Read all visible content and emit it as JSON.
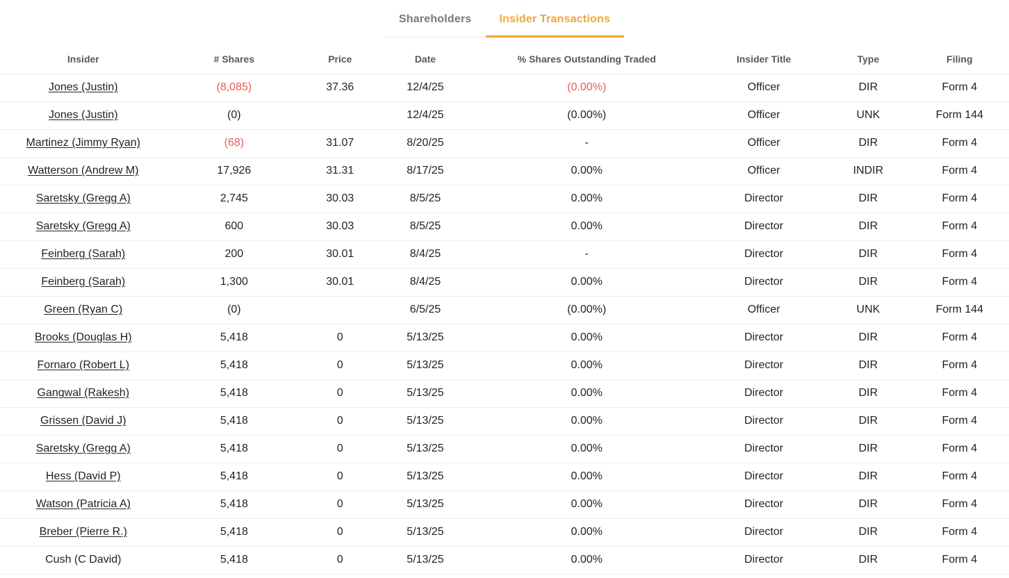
{
  "tabs": [
    {
      "label": "Shareholders",
      "active": false
    },
    {
      "label": "Insider Transactions",
      "active": true
    }
  ],
  "colors": {
    "accent_orange": "#f7a237",
    "negative_red": "#eb5b53",
    "body_text": "#1e2025",
    "header_text": "#55585e",
    "tab_inactive_text": "#75787f",
    "row_divider": "#ededed"
  },
  "table": {
    "columns": [
      "Insider",
      "# Shares",
      "Price",
      "Date",
      "% Shares Outstanding Traded",
      "Insider Title",
      "Type",
      "Filing"
    ],
    "rows": [
      {
        "insider": "Jones (Justin)",
        "link": true,
        "shares": "(8,085)",
        "shares_neg": true,
        "price": "37.36",
        "date": "12/4/25",
        "pct": "(0.00%)",
        "pct_neg": true,
        "title": "Officer",
        "type": "DIR",
        "filing": "Form 4"
      },
      {
        "insider": "Jones (Justin)",
        "link": true,
        "shares": "(0)",
        "shares_neg": false,
        "price": "",
        "date": "12/4/25",
        "pct": "(0.00%)",
        "pct_neg": false,
        "title": "Officer",
        "type": "UNK",
        "filing": "Form 144"
      },
      {
        "insider": "Martinez (Jimmy Ryan)",
        "link": true,
        "shares": "(68)",
        "shares_neg": true,
        "price": "31.07",
        "date": "8/20/25",
        "pct": "-",
        "pct_neg": false,
        "title": "Officer",
        "type": "DIR",
        "filing": "Form 4"
      },
      {
        "insider": "Watterson (Andrew M)",
        "link": true,
        "shares": "17,926",
        "shares_neg": false,
        "price": "31.31",
        "date": "8/17/25",
        "pct": "0.00%",
        "pct_neg": false,
        "title": "Officer",
        "type": "INDIR",
        "filing": "Form 4"
      },
      {
        "insider": "Saretsky (Gregg A)",
        "link": true,
        "shares": "2,745",
        "shares_neg": false,
        "price": "30.03",
        "date": "8/5/25",
        "pct": "0.00%",
        "pct_neg": false,
        "title": "Director",
        "type": "DIR",
        "filing": "Form 4"
      },
      {
        "insider": "Saretsky (Gregg A)",
        "link": true,
        "shares": "600",
        "shares_neg": false,
        "price": "30.03",
        "date": "8/5/25",
        "pct": "0.00%",
        "pct_neg": false,
        "title": "Director",
        "type": "DIR",
        "filing": "Form 4"
      },
      {
        "insider": "Feinberg (Sarah)",
        "link": true,
        "shares": "200",
        "shares_neg": false,
        "price": "30.01",
        "date": "8/4/25",
        "pct": "-",
        "pct_neg": false,
        "title": "Director",
        "type": "DIR",
        "filing": "Form 4"
      },
      {
        "insider": "Feinberg (Sarah)",
        "link": true,
        "shares": "1,300",
        "shares_neg": false,
        "price": "30.01",
        "date": "8/4/25",
        "pct": "0.00%",
        "pct_neg": false,
        "title": "Director",
        "type": "DIR",
        "filing": "Form 4"
      },
      {
        "insider": "Green (Ryan C)",
        "link": true,
        "shares": "(0)",
        "shares_neg": false,
        "price": "",
        "date": "6/5/25",
        "pct": "(0.00%)",
        "pct_neg": false,
        "title": "Officer",
        "type": "UNK",
        "filing": "Form 144"
      },
      {
        "insider": "Brooks (Douglas H)",
        "link": true,
        "shares": "5,418",
        "shares_neg": false,
        "price": "0",
        "date": "5/13/25",
        "pct": "0.00%",
        "pct_neg": false,
        "title": "Director",
        "type": "DIR",
        "filing": "Form 4"
      },
      {
        "insider": "Fornaro (Robert L)",
        "link": true,
        "shares": "5,418",
        "shares_neg": false,
        "price": "0",
        "date": "5/13/25",
        "pct": "0.00%",
        "pct_neg": false,
        "title": "Director",
        "type": "DIR",
        "filing": "Form 4"
      },
      {
        "insider": "Gangwal (Rakesh)",
        "link": true,
        "shares": "5,418",
        "shares_neg": false,
        "price": "0",
        "date": "5/13/25",
        "pct": "0.00%",
        "pct_neg": false,
        "title": "Director",
        "type": "DIR",
        "filing": "Form 4"
      },
      {
        "insider": "Grissen (David J)",
        "link": true,
        "shares": "5,418",
        "shares_neg": false,
        "price": "0",
        "date": "5/13/25",
        "pct": "0.00%",
        "pct_neg": false,
        "title": "Director",
        "type": "DIR",
        "filing": "Form 4"
      },
      {
        "insider": "Saretsky (Gregg A)",
        "link": true,
        "shares": "5,418",
        "shares_neg": false,
        "price": "0",
        "date": "5/13/25",
        "pct": "0.00%",
        "pct_neg": false,
        "title": "Director",
        "type": "DIR",
        "filing": "Form 4"
      },
      {
        "insider": "Hess (David P)",
        "link": true,
        "shares": "5,418",
        "shares_neg": false,
        "price": "0",
        "date": "5/13/25",
        "pct": "0.00%",
        "pct_neg": false,
        "title": "Director",
        "type": "DIR",
        "filing": "Form 4"
      },
      {
        "insider": "Watson (Patricia A)",
        "link": true,
        "shares": "5,418",
        "shares_neg": false,
        "price": "0",
        "date": "5/13/25",
        "pct": "0.00%",
        "pct_neg": false,
        "title": "Director",
        "type": "DIR",
        "filing": "Form 4"
      },
      {
        "insider": "Breber (Pierre R.)",
        "link": true,
        "shares": "5,418",
        "shares_neg": false,
        "price": "0",
        "date": "5/13/25",
        "pct": "0.00%",
        "pct_neg": false,
        "title": "Director",
        "type": "DIR",
        "filing": "Form 4"
      },
      {
        "insider": "Cush (C David)",
        "link": false,
        "shares": "5,418",
        "shares_neg": false,
        "price": "0",
        "date": "5/13/25",
        "pct": "0.00%",
        "pct_neg": false,
        "title": "Director",
        "type": "DIR",
        "filing": "Form 4"
      }
    ]
  }
}
